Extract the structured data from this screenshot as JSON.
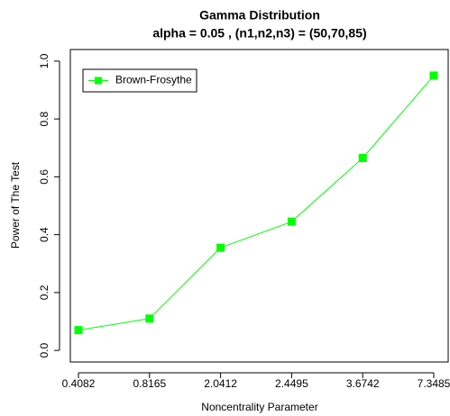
{
  "chart_data": {
    "type": "line",
    "title": "Gamma Distribution",
    "subtitle": "alpha = 0.05 , (n1,n2,n3) = (50,70,85)",
    "x_label": "Noncentrality Parameter",
    "y_label": "Power of The Test",
    "categories": [
      "0.4082",
      "0.8165",
      "2.0412",
      "2.4495",
      "3.6742",
      "7.3485"
    ],
    "series": [
      {
        "name": "Brown-Frosythe",
        "color": "#00ff00",
        "values": [
          0.07,
          0.11,
          0.355,
          0.445,
          0.665,
          0.95
        ]
      }
    ],
    "ylim": [
      -0.04,
      1.04
    ],
    "yticks": [
      {
        "value": 0,
        "label": "0.0"
      },
      0.2,
      0.4,
      0.6,
      0.8,
      {
        "value": 1,
        "label": "1.0"
      }
    ],
    "legend": "topleft"
  }
}
